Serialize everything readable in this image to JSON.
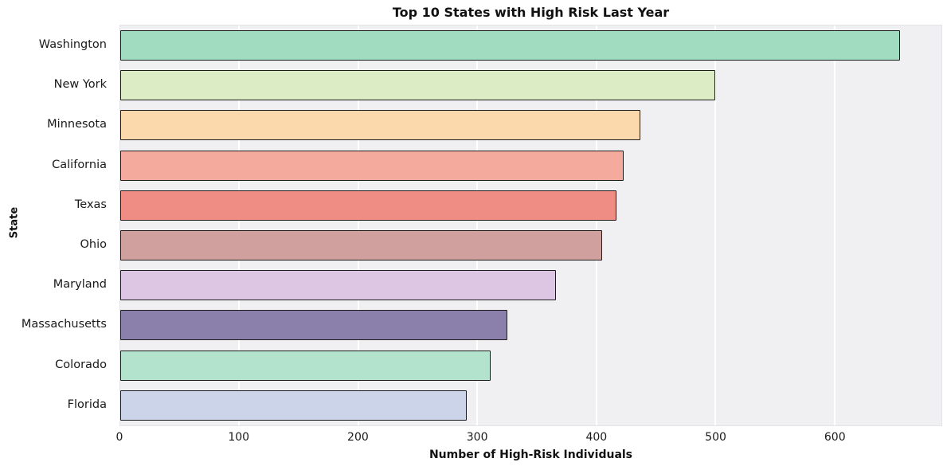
{
  "chart_data": {
    "type": "bar",
    "orientation": "horizontal",
    "title": "Top 10 States with High Risk Last Year",
    "xlabel": "Number of High-Risk Individuals",
    "ylabel": "State",
    "categories": [
      "Washington",
      "New York",
      "Minnesota",
      "California",
      "Texas",
      "Ohio",
      "Maryland",
      "Massachusetts",
      "Colorado",
      "Florida"
    ],
    "values": [
      655,
      500,
      437,
      423,
      417,
      405,
      366,
      325,
      311,
      291
    ],
    "xlim": [
      0,
      690
    ],
    "xticks": [
      0,
      100,
      200,
      300,
      400,
      500,
      600
    ],
    "grid": "vertical white gridlines on light-gray plot background",
    "legend": "none",
    "bar_colors": [
      "#a2dcc0",
      "#dcecc5",
      "#fbd9ac",
      "#f5aa9e",
      "#ef8d85",
      "#cfa09e",
      "#ddc6e4",
      "#8b80ab",
      "#b4e3cd",
      "#ccd4e9"
    ],
    "bar_border_color": "#1c1c1c",
    "plot_background": "#f0f0f3"
  }
}
